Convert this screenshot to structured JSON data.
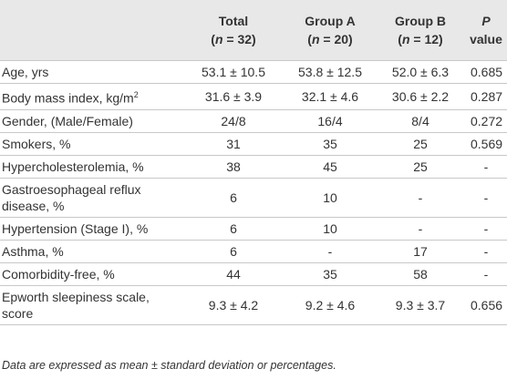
{
  "table": {
    "columns": [
      {
        "title": "Total",
        "subtitle": "(n = 32)"
      },
      {
        "title": "Group A",
        "subtitle": "(n = 20)"
      },
      {
        "title": "Group B",
        "subtitle": "(n = 12)"
      },
      {
        "title": "P value"
      }
    ],
    "rows": [
      [
        "Age, yrs",
        "53.1 ± 10.5",
        "53.8 ± 12.5",
        "52.0 ± 6.3",
        "0.685"
      ],
      [
        "Body mass index, kg/m2",
        "31.6 ± 3.9",
        "32.1 ± 4.6",
        "30.6 ± 2.2",
        "0.287"
      ],
      [
        "Gender, (Male/Female)",
        "24/8",
        "16/4",
        "8/4",
        "0.272"
      ],
      [
        "Smokers, %",
        "31",
        "35",
        "25",
        "0.569"
      ],
      [
        "Hypercholesterolemia, %",
        "38",
        "45",
        "25",
        "-"
      ],
      [
        "Gastroesophageal reflux disease, %",
        "6",
        "10",
        "-",
        "-"
      ],
      [
        "Hypertension (Stage I), %",
        "6",
        "10",
        "-",
        "-"
      ],
      [
        "Asthma, %",
        "6",
        "-",
        "17",
        "-"
      ],
      [
        "Comorbidity-free, %",
        "44",
        "35",
        "58",
        "-"
      ],
      [
        "Epworth sleepiness scale, score",
        "9.3 ± 4.2",
        "9.2 ± 4.6",
        "9.3 ± 3.7",
        "0.656"
      ]
    ],
    "footnote": "Data are expressed as mean ± standard deviation or percentages."
  }
}
